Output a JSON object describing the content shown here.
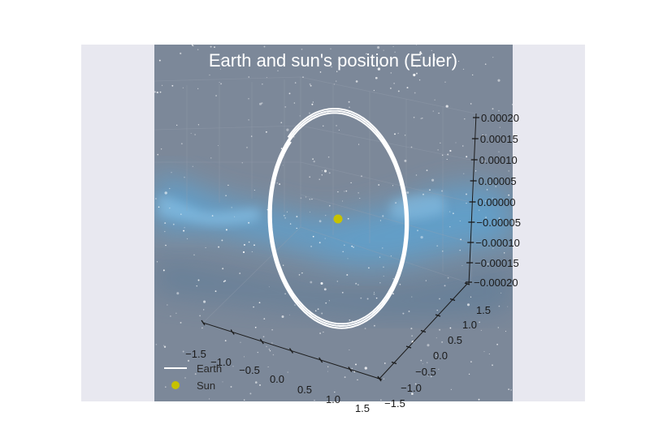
{
  "chart_data": {
    "type": "line",
    "title": "Earth and sun's position (Euler)",
    "xlabel": "",
    "ylabel": "",
    "zlabel": "",
    "x_ticks": [
      "−1.5",
      "−1.0",
      "−0.5",
      "0.0",
      "0.5",
      "1.0",
      "1.5"
    ],
    "y_ticks": [
      "−1.5",
      "−1.0",
      "−0.5",
      "0.0",
      "0.5",
      "1.0",
      "1.5"
    ],
    "z_ticks": [
      "−0.00020",
      "−0.00015",
      "−0.00010",
      "−0.00005",
      "0.00000",
      "0.00005",
      "0.00010",
      "0.00015",
      "0.00020"
    ],
    "xlim": [
      -1.5,
      1.5
    ],
    "ylim": [
      -1.5,
      1.5
    ],
    "zlim": [
      -0.0002,
      0.0002
    ],
    "grid": true,
    "legend_position": "lower-left",
    "series": [
      {
        "name": "Earth",
        "kind": "orbit",
        "color": "#ffffff",
        "radius_au": 1.0,
        "turns": 3,
        "radius_growth_per_turn": 0.02,
        "z_amplitude": 8e-05
      },
      {
        "name": "Sun",
        "kind": "point",
        "color": "#c7c200",
        "x": 0.0,
        "y": 0.0,
        "z": 0.0
      }
    ]
  },
  "colors": {
    "figure_background": "#e8e8f0",
    "axes_background": "#7c8899",
    "nebula": "#5aa6d8"
  }
}
